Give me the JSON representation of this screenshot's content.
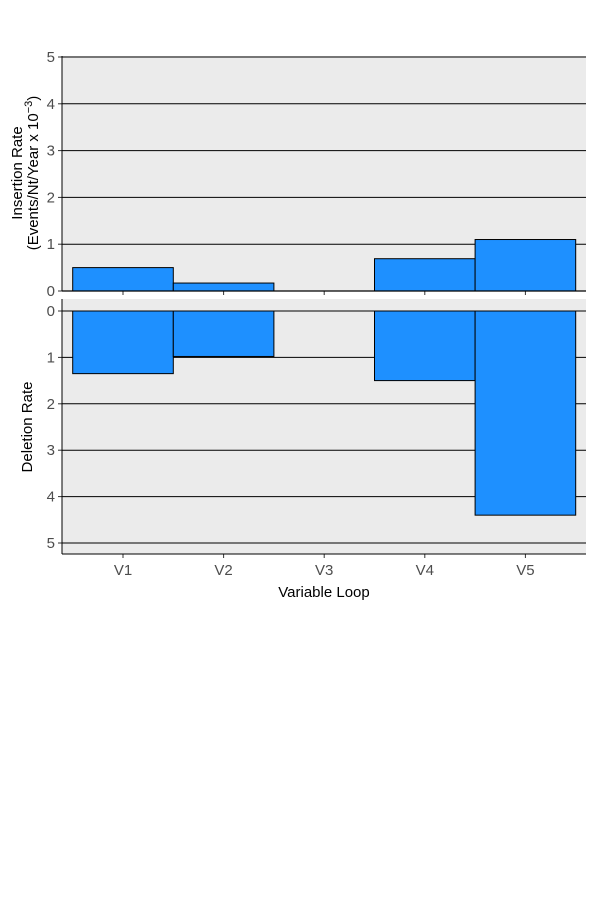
{
  "chart_data": [
    {
      "type": "bar",
      "panel": "insertion",
      "categories": [
        "V1",
        "V2",
        "V3",
        "V4",
        "V5"
      ],
      "values": [
        0.5,
        0.17,
        0,
        0.69,
        1.1
      ],
      "ylabel_line1": "Insertion Rate",
      "ylabel_line2": "(Events/Nt/Year x 10",
      "ylabel_exponent": "−3",
      "ylabel_close": ")",
      "ylim": [
        0,
        5
      ],
      "yticks": [
        "0",
        "1",
        "2",
        "3",
        "4",
        "5"
      ],
      "ytick_values": [
        0,
        1,
        2,
        3,
        4,
        5
      ],
      "grid": "horizontal",
      "bar_color": "#1E90FF",
      "background": "#EBEBEB"
    },
    {
      "type": "bar",
      "panel": "deletion",
      "categories": [
        "V1",
        "V2",
        "V3",
        "V4",
        "V5"
      ],
      "values": [
        1.35,
        0.98,
        0,
        1.5,
        4.4
      ],
      "ylabel": "Deletion Rate",
      "xlabel": "Variable Loop",
      "ylim": [
        0,
        5
      ],
      "y_reversed": true,
      "yticks": [
        "0",
        "1",
        "2",
        "3",
        "4",
        "5"
      ],
      "ytick_values": [
        0,
        1,
        2,
        3,
        4,
        5
      ],
      "grid": "horizontal",
      "bar_color": "#1E90FF",
      "background": "#EBEBEB"
    }
  ]
}
